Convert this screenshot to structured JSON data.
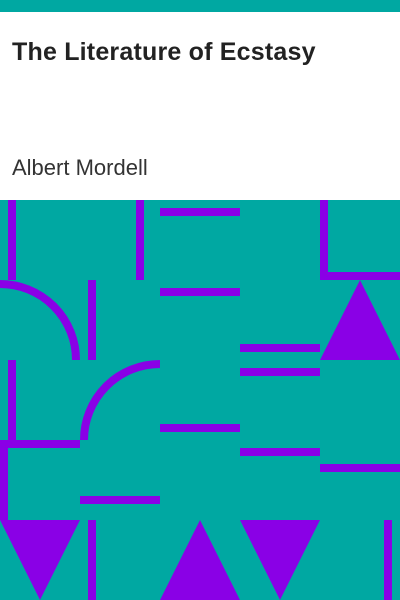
{
  "book": {
    "title": "The Literature of Ecstasy",
    "author": "Albert Mordell"
  },
  "cover_art": {
    "background_color": "#00a8a2",
    "shape_color": "#8a00e6",
    "pattern": "geometric-tiles"
  }
}
